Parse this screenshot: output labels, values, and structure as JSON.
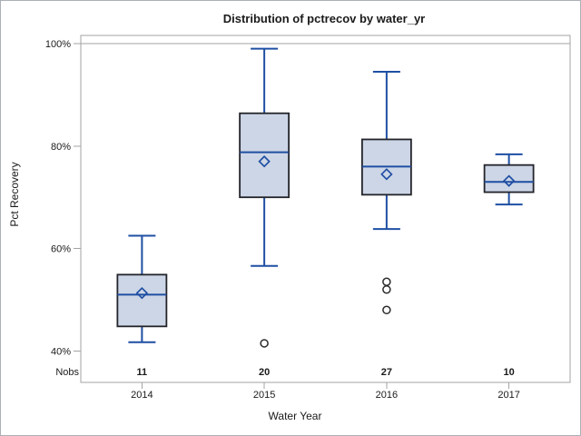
{
  "title": "Distribution of pctrecov by water_yr",
  "colors": {
    "box_fill": "#cdd6e6",
    "box_border": "#23242a",
    "whisker_blue": "#1f4fa3",
    "frame_gray": "#a3a3a3",
    "outlier_black": "#2b2b2b",
    "text": "#1a1a1a"
  },
  "y_axis": {
    "label": "Pct Recovery",
    "tick_labels": [
      "100%",
      "80%",
      "60%",
      "40%"
    ],
    "tick_values": [
      100,
      80,
      60,
      40
    ]
  },
  "x_axis": {
    "label": "Water Year",
    "categories": [
      "2014",
      "2015",
      "2016",
      "2017"
    ]
  },
  "nobs_row": {
    "label": "Nobs",
    "values": [
      "11",
      "20",
      "27",
      "10"
    ]
  },
  "chart_data": {
    "type": "boxplot",
    "title": "Distribution of pctrecov by water_yr",
    "xlabel": "Water Year",
    "ylabel": "Pct Recovery",
    "categories": [
      "2014",
      "2015",
      "2016",
      "2017"
    ],
    "ylim": [
      33.9,
      101.6
    ],
    "yticks": [
      40,
      60,
      80,
      100
    ],
    "ytick_format": "percent",
    "refline": 100,
    "grid": false,
    "legend": "none",
    "nobs": [
      11,
      20,
      27,
      10
    ],
    "series": [
      {
        "category": "2014",
        "n": 11,
        "whisker_low": 41.7,
        "q1": 44.8,
        "median": 51.0,
        "mean": 51.3,
        "q3": 54.9,
        "whisker_high": 62.5,
        "outliers": []
      },
      {
        "category": "2015",
        "n": 20,
        "whisker_low": 56.6,
        "q1": 70.0,
        "median": 78.8,
        "mean": 77.0,
        "q3": 86.4,
        "whisker_high": 99.0,
        "outliers": [
          41.5
        ]
      },
      {
        "category": "2016",
        "n": 27,
        "whisker_low": 63.8,
        "q1": 70.5,
        "median": 76.0,
        "mean": 74.5,
        "q3": 81.3,
        "whisker_high": 94.5,
        "outliers": [
          53.5,
          52.0,
          48.0
        ]
      },
      {
        "category": "2017",
        "n": 10,
        "whisker_low": 68.6,
        "q1": 71.0,
        "median": 73.0,
        "mean": 73.2,
        "q3": 76.3,
        "whisker_high": 78.4,
        "outliers": []
      }
    ]
  }
}
